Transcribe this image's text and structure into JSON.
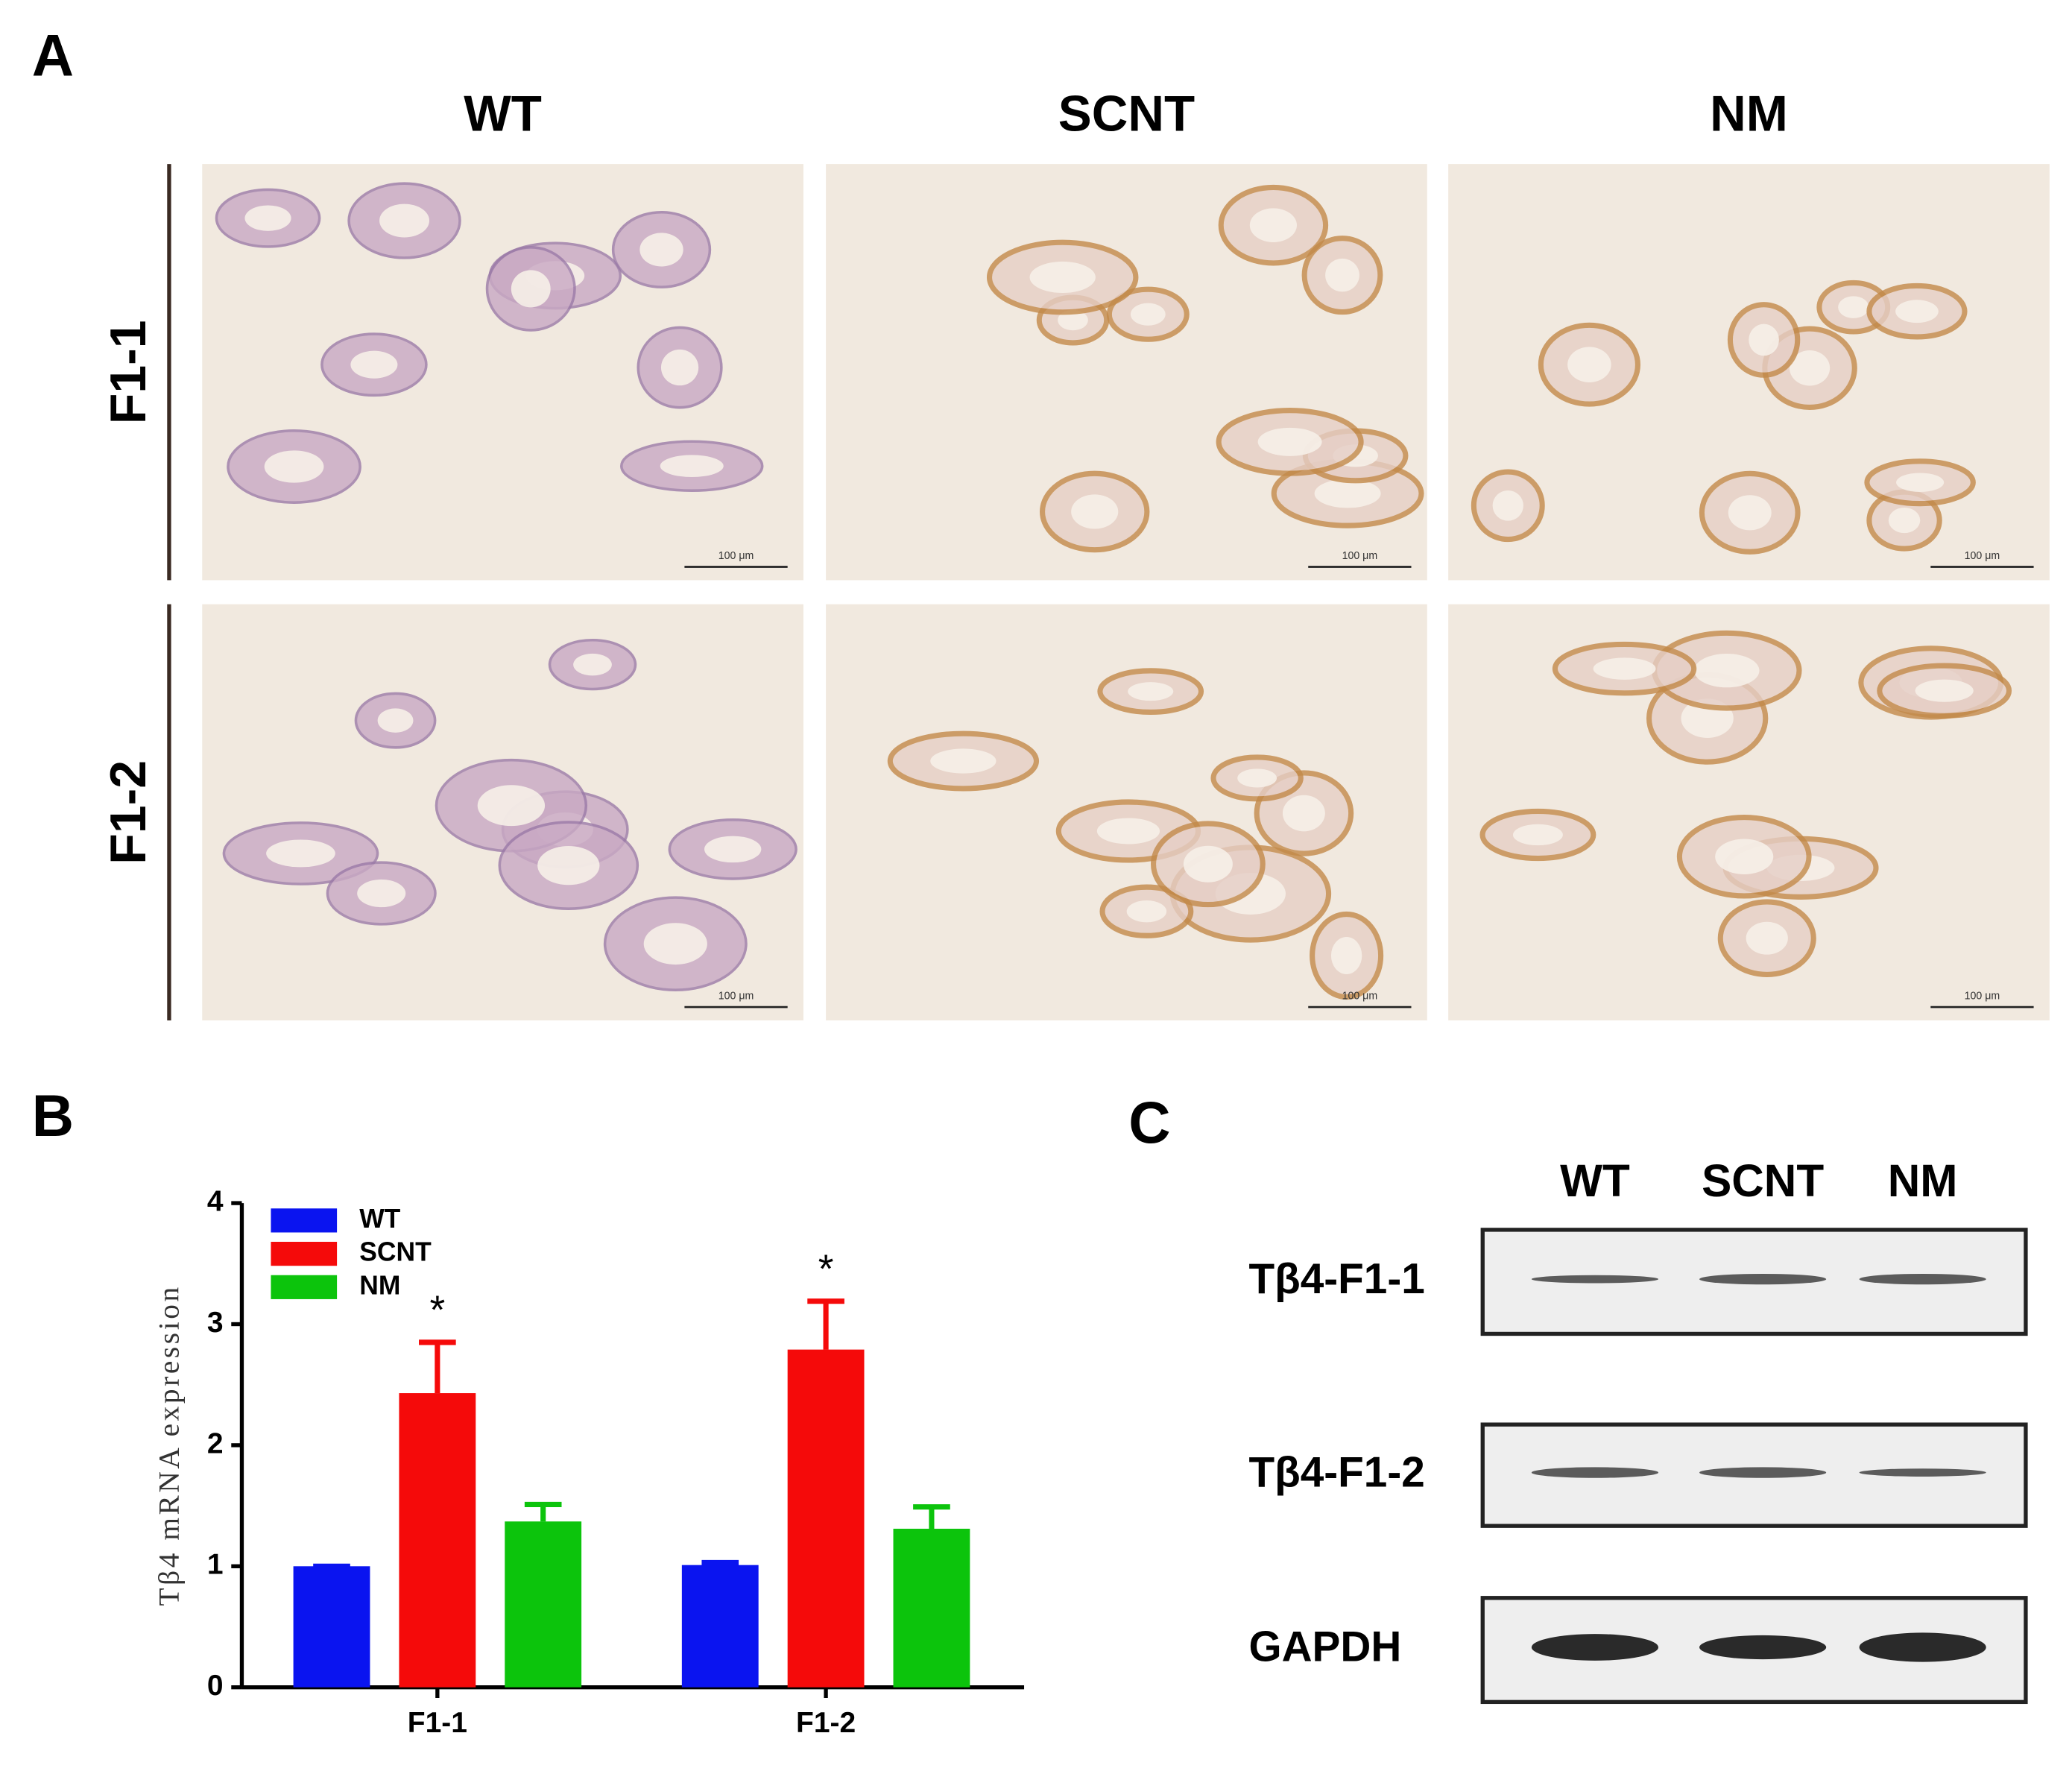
{
  "panel_a": {
    "letter": "A",
    "columns": [
      "WT",
      "SCNT",
      "NM"
    ],
    "rows": [
      "F1-1",
      "F1-2"
    ],
    "scale_bar": "100 μm"
  },
  "chart_data": {
    "type": "bar",
    "letter": "B",
    "y_label": "Tβ4 mRNA expression",
    "categories": [
      "F1-1",
      "F1-2"
    ],
    "series": [
      {
        "name": "WT",
        "color": "#0a14f0",
        "values": [
          1.0,
          1.01
        ],
        "errors": [
          0.0,
          0.02
        ]
      },
      {
        "name": "SCNT",
        "color": "#f50a0a",
        "values": [
          2.43,
          2.79
        ],
        "errors": [
          0.42,
          0.4
        ],
        "significance": [
          "*",
          "*"
        ]
      },
      {
        "name": "NM",
        "color": "#0cc40c",
        "values": [
          1.37,
          1.31
        ],
        "errors": [
          0.14,
          0.18
        ]
      }
    ],
    "ylim": [
      0,
      4
    ],
    "yticks": [
      0,
      1,
      2,
      3,
      4
    ],
    "legend": "top-left"
  },
  "panel_c": {
    "letter": "C",
    "lanes": [
      "WT",
      "SCNT",
      "NM"
    ],
    "rows": [
      "Tβ4-F1-1",
      "Tβ4-F1-2",
      "GAPDH"
    ]
  }
}
